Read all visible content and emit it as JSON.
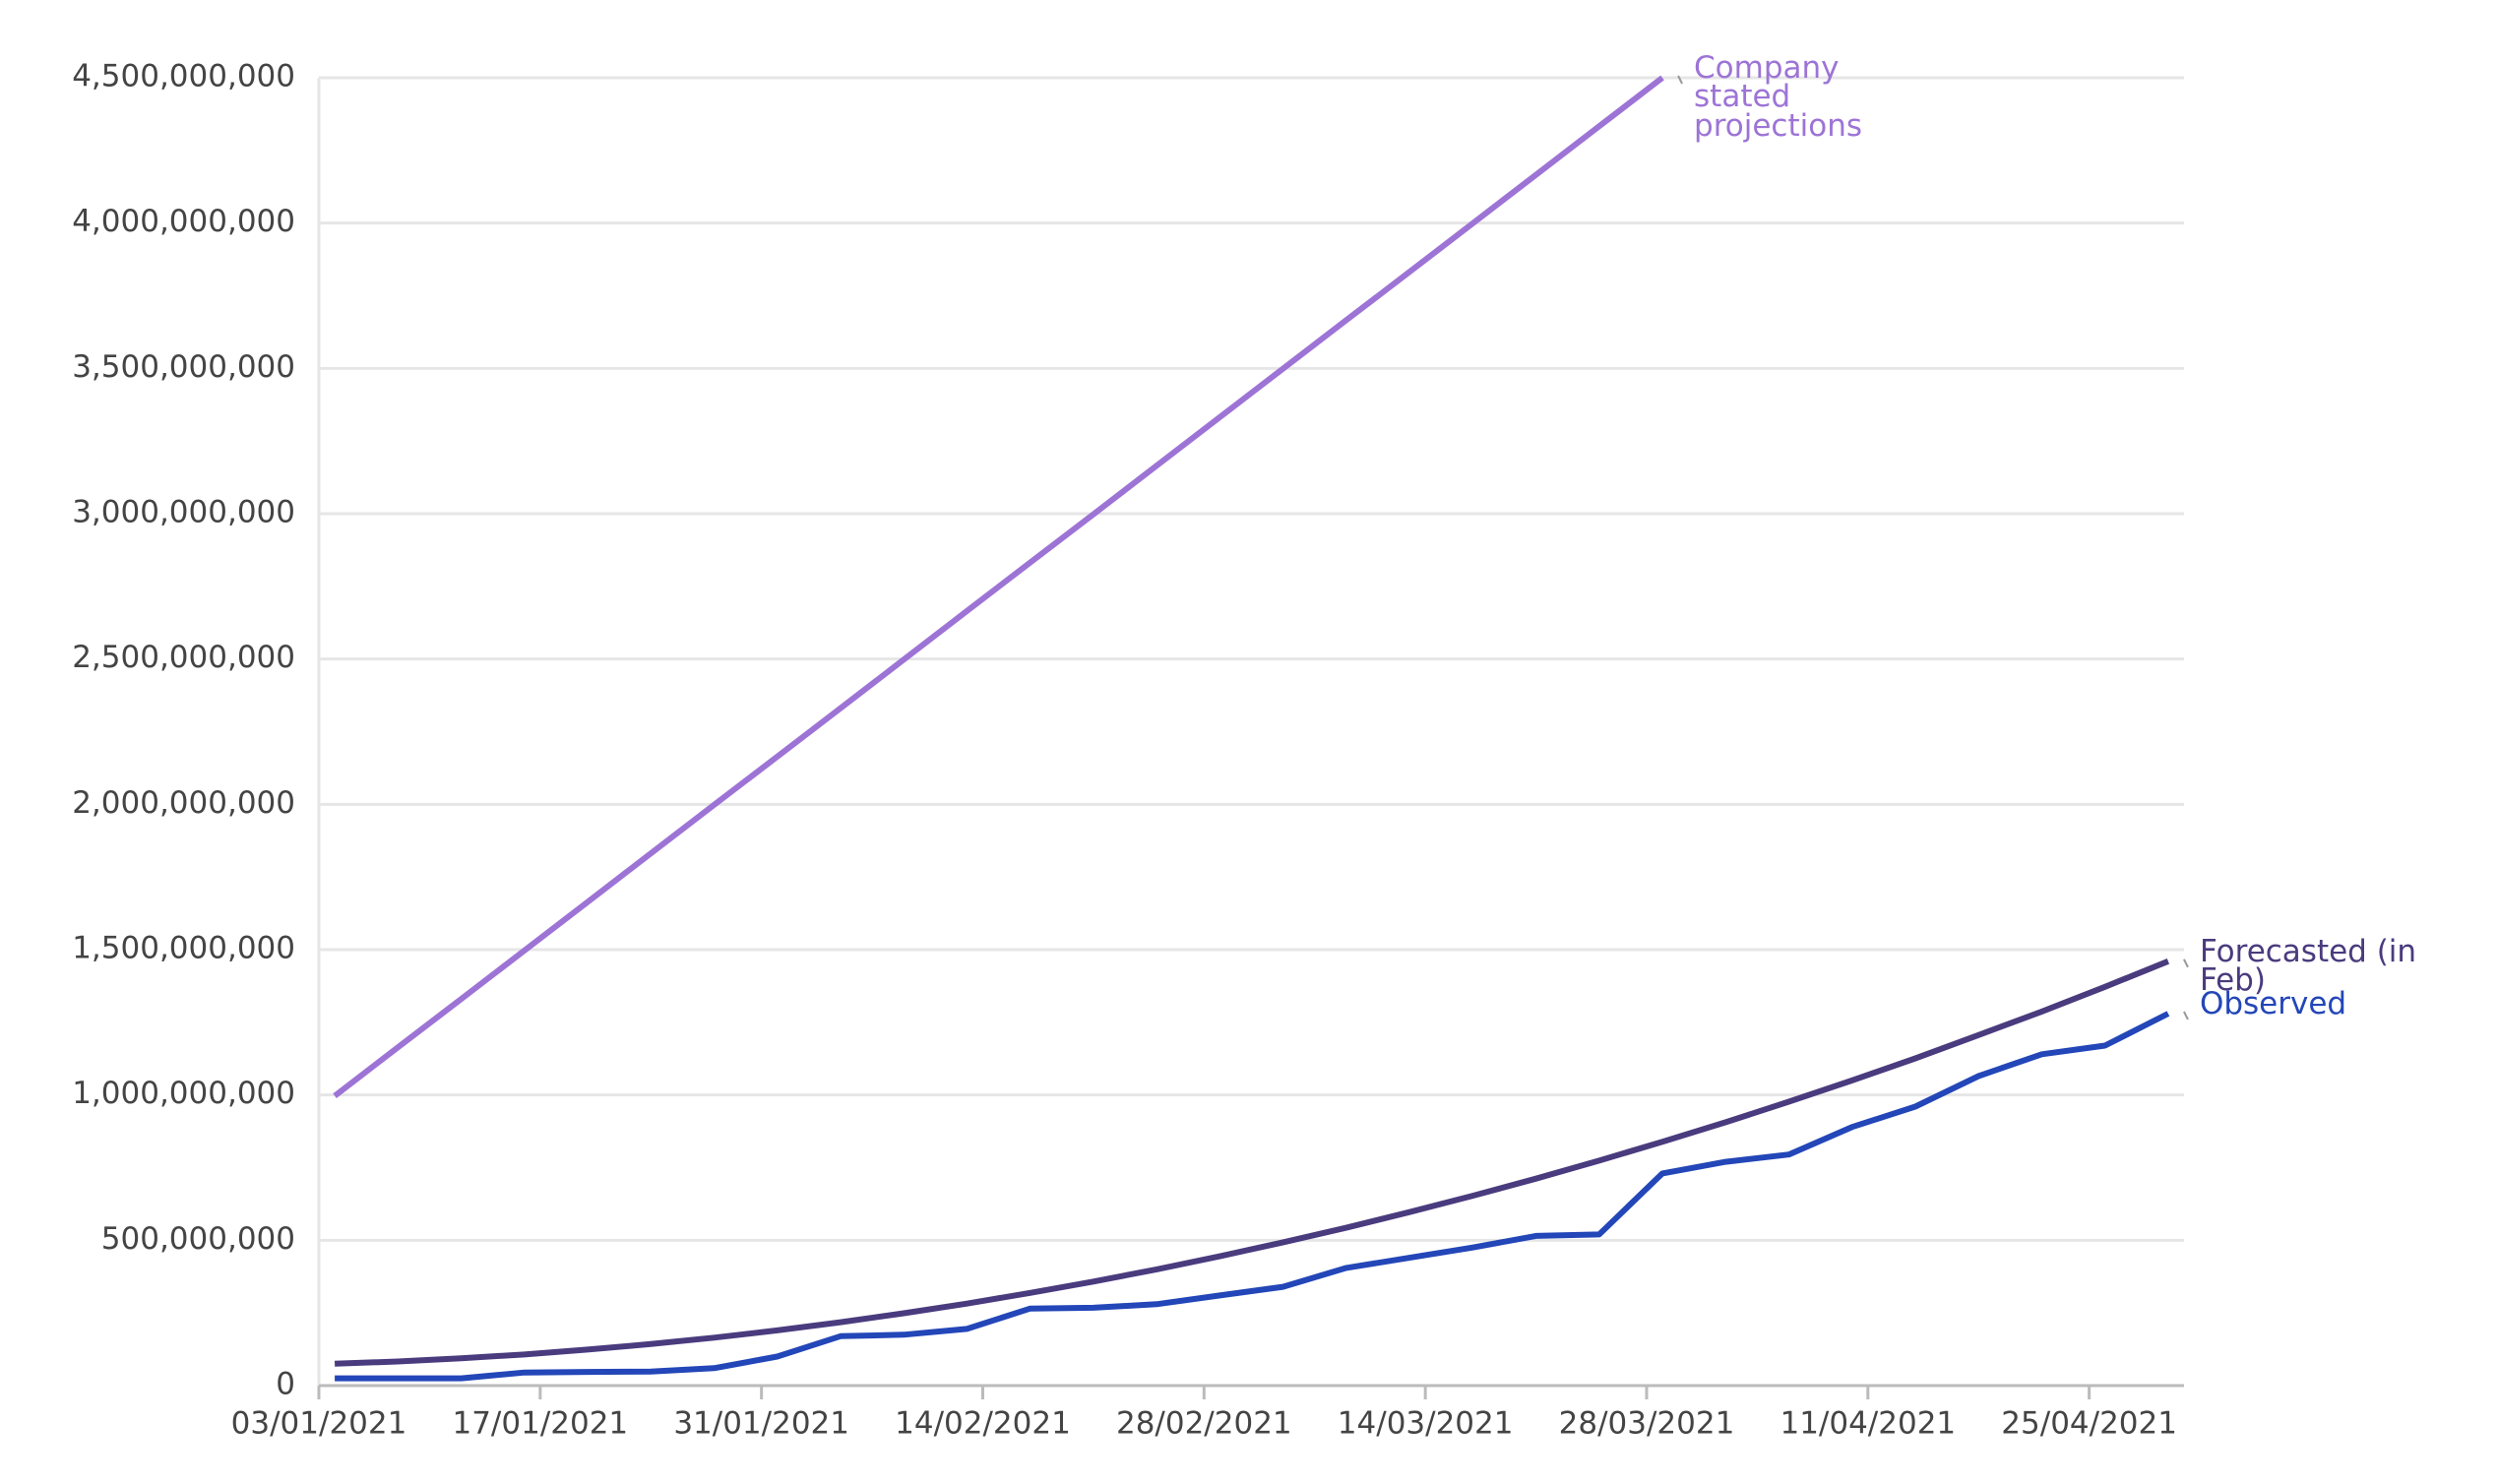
{
  "chart_data": {
    "type": "line",
    "x": [
      "04/01/2021",
      "08/01/2021",
      "12/01/2021",
      "16/01/2021",
      "20/01/2021",
      "24/01/2021",
      "28/01/2021",
      "01/02/2021",
      "05/02/2021",
      "09/02/2021",
      "13/02/2021",
      "17/02/2021",
      "21/02/2021",
      "25/02/2021",
      "01/03/2021",
      "05/03/2021",
      "09/03/2021",
      "13/03/2021",
      "17/03/2021",
      "21/03/2021",
      "25/03/2021",
      "29/03/2021",
      "02/04/2021",
      "06/04/2021",
      "10/04/2021",
      "14/04/2021",
      "18/04/2021",
      "22/04/2021",
      "26/04/2021",
      "30/04/2021"
    ],
    "series": [
      {
        "name": "Company stated projections",
        "color": "#9d74d6",
        "values": [
          997000000,
          1164000000,
          1330000000,
          1497000000,
          1664000000,
          1831000000,
          1998000000,
          2164000000,
          2331000000,
          2498000000,
          2665000000,
          2832000000,
          2998000000,
          3165000000,
          3332000000,
          3499000000,
          3666000000,
          3832000000,
          3999000000,
          4166000000,
          4333000000,
          4500000000,
          null,
          null,
          null,
          null,
          null,
          null,
          null,
          null
        ]
      },
      {
        "name": "Forecasted (in Feb)",
        "color": "#4a3b7e",
        "values": [
          75000000,
          83000000,
          94000000,
          107000000,
          124000000,
          143000000,
          165000000,
          190000000,
          218000000,
          249000000,
          282000000,
          319000000,
          358000000,
          400000000,
          445000000,
          493000000,
          543000000,
          597000000,
          653000000,
          712000000,
          774000000,
          839000000,
          906000000,
          977000000,
          1050000000,
          1126000000,
          1206000000,
          1287000000,
          1372000000,
          1460000000
        ]
      },
      {
        "name": "Observed",
        "color": "#2346b8",
        "values": [
          25000000,
          25000000,
          25000000,
          45000000,
          47000000,
          48000000,
          60000000,
          100000000,
          170000000,
          175000000,
          195000000,
          265000000,
          268000000,
          280000000,
          310000000,
          340000000,
          405000000,
          440000000,
          475000000,
          515000000,
          520000000,
          730000000,
          770000000,
          795000000,
          890000000,
          960000000,
          1065000000,
          1140000000,
          1170000000,
          1280000000
        ]
      }
    ],
    "xlim": [
      "03/01/2021",
      "01/05/2021"
    ],
    "xticks": [
      "03/01/2021",
      "17/01/2021",
      "31/01/2021",
      "14/02/2021",
      "28/02/2021",
      "14/03/2021",
      "28/03/2021",
      "11/04/2021",
      "25/04/2021"
    ],
    "ylim": [
      0,
      4500000000
    ],
    "yticks": [
      0,
      {
        "value": 500000000,
        "label": "500,000,000"
      },
      {
        "value": 1000000000,
        "label": "1,000,000,000"
      },
      {
        "value": 1500000000,
        "label": "1,500,000,000"
      },
      {
        "value": 2000000000,
        "label": "2,000,000,000"
      },
      {
        "value": 2500000000,
        "label": "2,500,000,000"
      },
      {
        "value": 3000000000,
        "label": "3,000,000,000"
      },
      {
        "value": 3500000000,
        "label": "3,500,000,000"
      },
      {
        "value": 4000000000,
        "label": "4,000,000,000"
      },
      {
        "value": 4500000000,
        "label": "4,500,000,000"
      }
    ],
    "grid": true
  }
}
